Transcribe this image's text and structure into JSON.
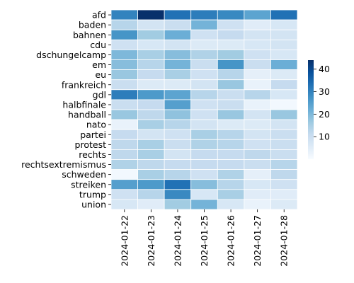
{
  "chart_data": {
    "type": "heatmap",
    "title": "",
    "xlabel": "",
    "ylabel": "",
    "x": [
      "2024-01-22",
      "2024-01-23",
      "2024-01-24",
      "2024-01-25",
      "2024-01-26",
      "2024-01-27",
      "2024-01-28"
    ],
    "y": [
      "afd",
      "baden",
      "bahnen",
      "cdu",
      "dschungelcamp",
      "em",
      "eu",
      "frankreich",
      "gdl",
      "halbfinale",
      "handball",
      "nato",
      "partei",
      "protest",
      "rechts",
      "rechtsextremismus",
      "schweden",
      "streiken",
      "trump",
      "union"
    ],
    "values": [
      [
        30,
        44,
        33,
        31,
        29,
        24,
        33
      ],
      [
        13,
        8,
        10,
        21,
        9,
        5,
        7
      ],
      [
        27,
        16,
        22,
        9,
        11,
        8,
        8
      ],
      [
        9,
        7,
        8,
        6,
        6,
        7,
        8
      ],
      [
        20,
        15,
        19,
        14,
        16,
        9,
        7
      ],
      [
        19,
        13,
        21,
        10,
        27,
        10,
        22
      ],
      [
        17,
        11,
        15,
        9,
        13,
        4,
        6
      ],
      [
        10,
        6,
        6,
        8,
        17,
        3,
        11
      ],
      [
        31,
        26,
        24,
        13,
        10,
        13,
        7
      ],
      [
        10,
        11,
        25,
        9,
        10,
        3,
        1
      ],
      [
        17,
        12,
        18,
        9,
        17,
        8,
        17
      ],
      [
        3,
        15,
        13,
        8,
        6,
        6,
        8
      ],
      [
        11,
        8,
        9,
        15,
        13,
        8,
        10
      ],
      [
        12,
        15,
        10,
        14,
        13,
        9,
        10
      ],
      [
        12,
        15,
        8,
        11,
        11,
        12,
        10
      ],
      [
        14,
        12,
        11,
        11,
        11,
        10,
        13
      ],
      [
        1,
        15,
        13,
        9,
        14,
        4,
        12
      ],
      [
        25,
        26,
        33,
        19,
        13,
        7,
        9
      ],
      [
        9,
        13,
        29,
        7,
        15,
        5,
        5
      ],
      [
        7,
        5,
        16,
        21,
        7,
        3,
        6
      ]
    ],
    "vmin": 0,
    "vmax": 44,
    "colormap": "Blues",
    "colorbar": {
      "ticks": [
        10,
        20,
        30,
        40
      ]
    },
    "grid": false,
    "legend": "colorbar-right"
  }
}
